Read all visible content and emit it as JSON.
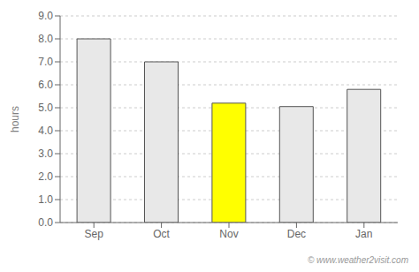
{
  "chart_data": {
    "type": "bar",
    "categories": [
      "Sep",
      "Oct",
      "Nov",
      "Dec",
      "Jan"
    ],
    "values": [
      8.0,
      7.0,
      5.2,
      5.05,
      5.8
    ],
    "colors": [
      "#e8e8e8",
      "#e8e8e8",
      "#ffff00",
      "#e8e8e8",
      "#e8e8e8"
    ],
    "ylabel": "hours",
    "ylim": [
      0,
      9.0
    ],
    "yticks": [
      {
        "value": 0,
        "label": "0.0"
      },
      {
        "value": 1,
        "label": "1.0"
      },
      {
        "value": 2,
        "label": "2.0"
      },
      {
        "value": 3,
        "label": "3.0"
      },
      {
        "value": 4,
        "label": "4.0"
      },
      {
        "value": 5,
        "label": "5.0"
      },
      {
        "value": 6,
        "label": "6.0"
      },
      {
        "value": 7,
        "label": "7.0"
      },
      {
        "value": 8,
        "label": "8.0"
      },
      {
        "value": 9,
        "label": "9.0"
      }
    ],
    "grid": true,
    "annotations": [
      "© www.weather2visit.com"
    ]
  }
}
